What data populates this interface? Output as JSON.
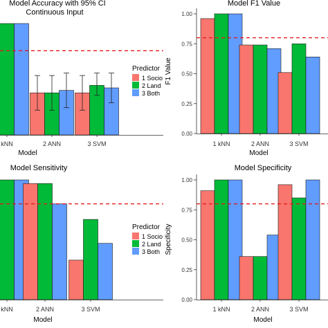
{
  "colors": {
    "series": [
      "#f8766d",
      "#00ba38",
      "#619cff"
    ],
    "reference_line": "#e41a1c",
    "bar_outline": "#1a1a1a",
    "axis": "#333333",
    "text": "#000000"
  },
  "legend": {
    "title": "Predictor",
    "items": [
      "1 Socio",
      "2 Land",
      "3 Both"
    ]
  },
  "chart_data": [
    {
      "type": "bar",
      "title": "Model Accuracy with 95% CI",
      "subtitle": "Continuous Input",
      "xlabel": "Model",
      "ylabel": "",
      "categories": [
        "kNN",
        "2 ANN",
        "3 SVM"
      ],
      "series": [
        {
          "name": "1 Socio",
          "values": [
            1.0,
            0.72,
            0.72
          ],
          "ci": [
            null,
            [
              0.65,
              0.79
            ],
            [
              0.65,
              0.79
            ]
          ]
        },
        {
          "name": "2 Land",
          "values": [
            1.0,
            0.72,
            0.75
          ],
          "ci": [
            null,
            [
              0.65,
              0.79
            ],
            [
              0.71,
              0.8
            ]
          ]
        },
        {
          "name": "3 Both",
          "values": [
            1.0,
            0.73,
            0.74
          ],
          "ci": [
            null,
            [
              0.66,
              0.8
            ],
            [
              0.68,
              0.8
            ]
          ]
        }
      ],
      "reference_line": 0.89,
      "ylim": [
        0.55,
        1.0
      ],
      "yticks": [],
      "grid": false,
      "legend_placement": "right"
    },
    {
      "type": "bar",
      "title": "Model F1 Value",
      "xlabel": "Model",
      "ylabel": "F1 Value",
      "categories": [
        "1 kNN",
        "2 ANN",
        "3 SVM"
      ],
      "series": [
        {
          "name": "1 Socio",
          "values": [
            0.96,
            0.74,
            0.51
          ]
        },
        {
          "name": "2 Land",
          "values": [
            1.0,
            0.74,
            0.75
          ]
        },
        {
          "name": "3 Both",
          "values": [
            1.0,
            0.71,
            0.64
          ]
        }
      ],
      "reference_line": 0.8,
      "ylim": [
        0,
        1.0
      ],
      "yticks": [
        "0.00",
        "0.25",
        "0.50",
        "0.75",
        "1.00"
      ],
      "grid": false
    },
    {
      "type": "bar",
      "title": "Model Sensitivity",
      "xlabel": "Model",
      "ylabel": "",
      "categories": [
        "kNN",
        "2 ANN",
        "3 SVM"
      ],
      "series": [
        {
          "name": "1 Socio",
          "values": [
            1.0,
            0.97,
            0.33
          ]
        },
        {
          "name": "2 Land",
          "values": [
            1.0,
            0.97,
            0.67
          ]
        },
        {
          "name": "3 Both",
          "values": [
            1.0,
            0.8,
            0.47
          ]
        }
      ],
      "reference_line": 0.8,
      "ylim": [
        0,
        1.0
      ],
      "yticks": [],
      "grid": false,
      "legend_placement": "right"
    },
    {
      "type": "bar",
      "title": "Model Specificity",
      "xlabel": "Model",
      "ylabel": "Specificity",
      "categories": [
        "1 kNN",
        "2 ANN",
        "3 SVM"
      ],
      "series": [
        {
          "name": "1 Socio",
          "values": [
            0.91,
            0.36,
            0.96
          ]
        },
        {
          "name": "2 Land",
          "values": [
            1.0,
            0.36,
            0.85
          ]
        },
        {
          "name": "3 Both",
          "values": [
            1.0,
            0.54,
            1.0
          ]
        }
      ],
      "reference_line": 0.8,
      "ylim": [
        0,
        1.0
      ],
      "yticks": [
        "0.00",
        "0.25",
        "0.50",
        "0.75",
        "1.00"
      ],
      "grid": false
    }
  ]
}
